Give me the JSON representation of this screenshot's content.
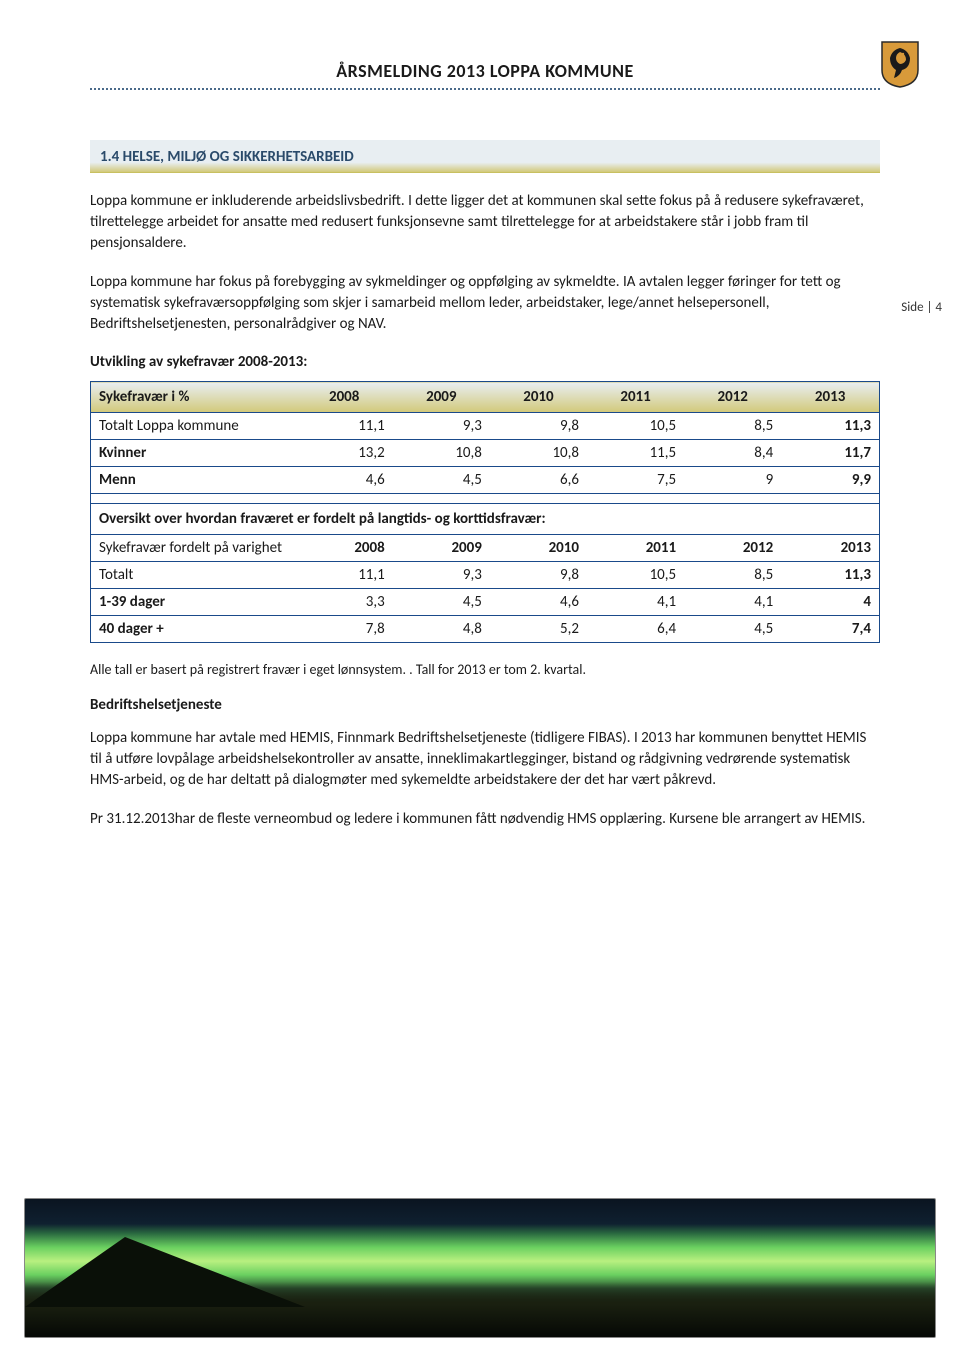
{
  "header": {
    "title": "ÅRSMELDING 2013 LOPPA KOMMUNE"
  },
  "crest": {
    "shield_fill": "#d89a3a",
    "shield_stroke": "#2a2a2a",
    "bird_fill": "#1a1a1a"
  },
  "section_heading": "1.4 HELSE, MILJØ OG SIKKERHETSARBEID",
  "side_note": "Side | 4",
  "para1": "Loppa kommune er inkluderende arbeidslivsbedrift. I dette ligger det at kommunen skal sette fokus på å redusere sykefraværet, tilrettelegge arbeidet for ansatte med redusert funksjonsevne samt tilrettelegge for at arbeidstakere står i jobb fram til pensjonsaldere.",
  "para2": "Loppa kommune har fokus på forebygging av sykmeldinger og oppfølging av sykmeldte. IA avtalen legger føringer for tett og systematisk sykefraværsoppfølging som skjer i samarbeid mellom leder, arbeidstaker, lege/annet helsepersonell, Bedriftshelsetjenesten, personalrådgiver og NAV.",
  "table_title": "Utvikling av sykefravær 2008-2013:",
  "table1": {
    "columns": [
      "Sykefravær i %",
      "2008",
      "2009",
      "2010",
      "2011",
      "2012",
      "2013"
    ],
    "rows": [
      {
        "label": "Totalt Loppa kommune",
        "vals": [
          "11,1",
          "9,3",
          "9,8",
          "10,5",
          "8,5",
          "11,3"
        ],
        "bold_last": true,
        "bold_row": false
      },
      {
        "label": "Kvinner",
        "vals": [
          "13,2",
          "10,8",
          "10,8",
          "11,5",
          "8,4",
          "11,7"
        ],
        "bold_label": true,
        "bold_last": true
      },
      {
        "label": "Menn",
        "vals": [
          "4,6",
          "4,5",
          "6,6",
          "7,5",
          "9",
          "9,9"
        ],
        "bold_label": true,
        "bold_last": true
      }
    ],
    "subhead": "Oversikt over hvordan fraværet er fordelt på langtids- og korttidsfravær:",
    "sub_columns_label": "Sykefravær fordelt på varighet",
    "sub_columns": [
      "2008",
      "2009",
      "2010",
      "2011",
      "2012",
      "2013"
    ],
    "sub_rows": [
      {
        "label": "Totalt",
        "vals": [
          "11,1",
          "9,3",
          "9,8",
          "10,5",
          "8,5",
          "11,3"
        ],
        "bold_last": true
      },
      {
        "label": "1-39 dager",
        "vals": [
          "3,3",
          "4,5",
          "4,6",
          "4,1",
          "4,1",
          "4"
        ],
        "bold_label": true,
        "bold_last": true
      },
      {
        "label": "40 dager +",
        "vals": [
          "7,8",
          "4,8",
          "5,2",
          "6,4",
          "4,5",
          "7,4"
        ],
        "bold_label": true,
        "bold_last": true
      }
    ]
  },
  "footnote": "Alle tall er basert på registrert fravær i eget lønnsystem. . Tall for 2013 er tom 2. kvartal.",
  "subheading2": "Bedriftshelsetjeneste",
  "para3": "Loppa kommune har avtale med HEMIS, Finnmark Bedriftshelsetjeneste (tidligere FIBAS). I 2013 har kommunen benyttet HEMIS til å utføre lovpålage arbeidshelsekontroller av ansatte, inneklimakartlegginger, bistand og rådgivning vedrørende systematisk HMS-arbeid, og de har deltatt på dialogmøter med sykemeldte arbeidstakere der det har vært påkrevd.",
  "para4": "Pr 31.12.2013har de fleste verneombud og ledere i kommunen fått nødvendig HMS opplæring. Kursene ble arrangert av HEMIS."
}
